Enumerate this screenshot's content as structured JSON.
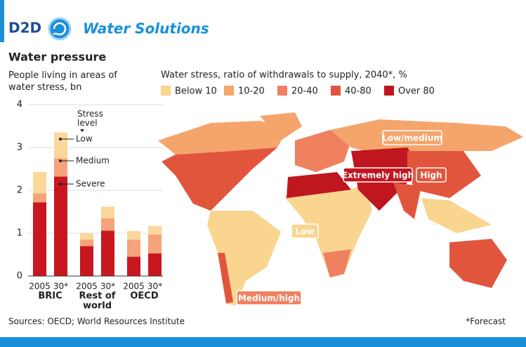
{
  "header": {
    "brand": "D2D",
    "title": "Water Solutions"
  },
  "chart_data": [
    {
      "type": "bar",
      "stacked": true,
      "title": "Water pressure",
      "subtitle": "People living in areas of water stress, bn",
      "legend_title": "Stress level",
      "categories": [
        "2005",
        "30*",
        "2005",
        "30*",
        "2005",
        "30*"
      ],
      "groups": [
        "BRIC",
        "Rest of world",
        "OECD"
      ],
      "series": [
        {
          "name": "Severe",
          "color": "#c8171e",
          "values": [
            1.72,
            2.32,
            0.7,
            1.06,
            0.45,
            0.53
          ]
        },
        {
          "name": "Medium",
          "color": "#f6a27a",
          "values": [
            0.21,
            0.43,
            0.15,
            0.29,
            0.4,
            0.44
          ]
        },
        {
          "name": "Low",
          "color": "#fbd79a",
          "values": [
            0.5,
            0.6,
            0.15,
            0.27,
            0.2,
            0.2
          ]
        }
      ],
      "ylim": [
        0,
        4
      ],
      "yticks": [
        0,
        1,
        2,
        3,
        4
      ],
      "grid": true
    },
    {
      "type": "map",
      "title": "Water stress, ratio of withdrawals to supply, 2040*, %",
      "legend": [
        {
          "label": "Below 10",
          "color": "#f9d58f"
        },
        {
          "label": "10-20",
          "color": "#f5a56c"
        },
        {
          "label": "20-40",
          "color": "#ef8060"
        },
        {
          "label": "40-80",
          "color": "#e2553d"
        },
        {
          "label": "Over 80",
          "color": "#c0161f"
        }
      ],
      "annotations": [
        {
          "text": "Low/medium",
          "color": "#f5a56c"
        },
        {
          "text": "Extremely high",
          "color": "#c0161f"
        },
        {
          "text": "High",
          "color": "#e2553d"
        },
        {
          "text": "Low",
          "color": "#f9d58f"
        },
        {
          "text": "Medium/high",
          "color": "#ef8060"
        }
      ]
    }
  ],
  "footer": {
    "source": "Sources: OECD; World Resources Institute",
    "note": "*Forecast"
  }
}
